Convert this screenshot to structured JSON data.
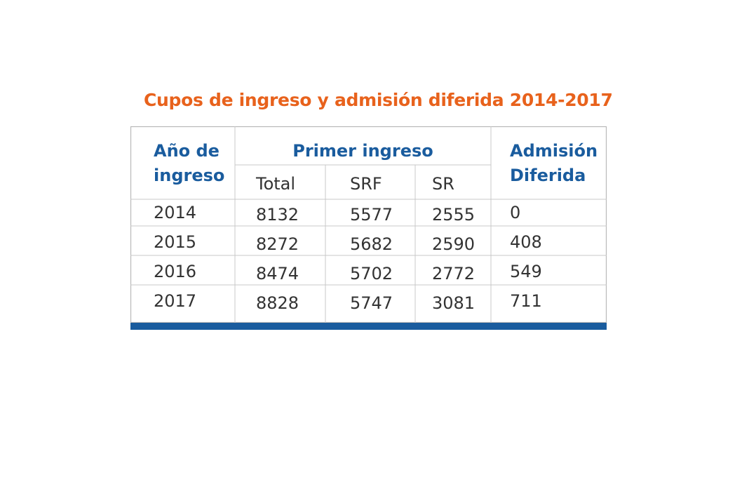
{
  "chart_data": {
    "type": "table",
    "title": "Cupos de ingreso y admisión diferida 2014-2017",
    "headers": {
      "year_line1": "Año de",
      "year_line2": "ingreso",
      "group": "Primer ingreso",
      "sub": [
        "Total",
        "SRF",
        "SR"
      ],
      "deferred_line1": "Admisión",
      "deferred_line2": "Diferida"
    },
    "rows": [
      {
        "year": "2014",
        "total": "8132",
        "srf": "5577",
        "sr": "2555",
        "deferred": "0"
      },
      {
        "year": "2015",
        "total": "8272",
        "srf": "5682",
        "sr": "2590",
        "deferred": "408"
      },
      {
        "year": "2016",
        "total": "8474",
        "srf": "5702",
        "sr": "2772",
        "deferred": "549"
      },
      {
        "year": "2017",
        "total": "8828",
        "srf": "5747",
        "sr": "3081",
        "deferred": "711"
      }
    ]
  },
  "colors": {
    "title": "#e8621c",
    "header": "#1a5c9e",
    "bottom_bar": "#1a5c9e",
    "grid": "#c8c8c8"
  }
}
